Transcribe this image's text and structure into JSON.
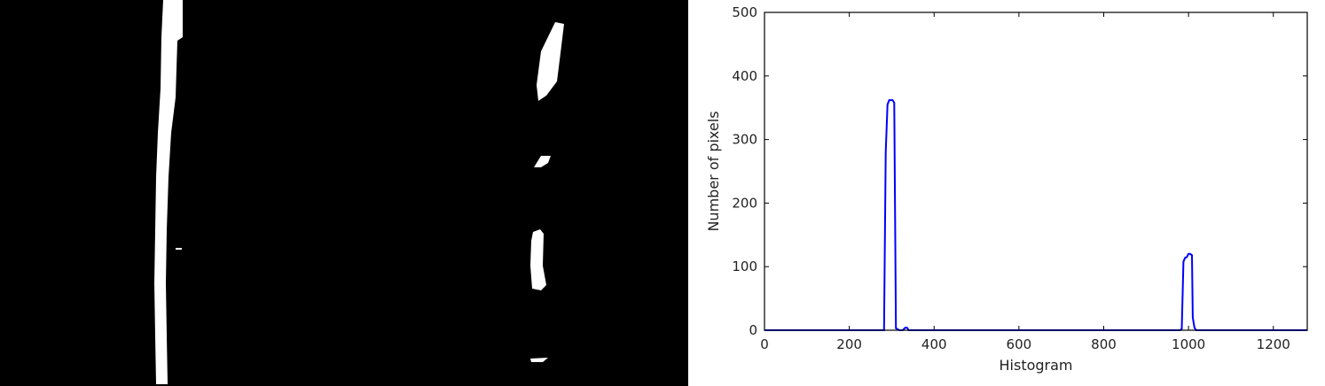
{
  "binary_image": {
    "colors": {
      "background": "#000000",
      "lane": "#ffffff"
    }
  },
  "chart_data": {
    "type": "line",
    "title": "",
    "xlabel": "Histogram",
    "ylabel": "Number of pixels",
    "xlim": [
      0,
      1280
    ],
    "ylim": [
      0,
      500
    ],
    "xticks": [
      0,
      200,
      400,
      600,
      800,
      1000,
      1200
    ],
    "yticks": [
      0,
      100,
      200,
      300,
      400,
      500
    ],
    "grid": false,
    "legend": "none",
    "series": [
      {
        "color": "#0000ff",
        "x": [
          0,
          282,
          286,
          290,
          294,
          298,
          302,
          306,
          310,
          318,
          326,
          332,
          336,
          340,
          600,
          980,
          984,
          988,
          992,
          996,
          1000,
          1004,
          1008,
          1010,
          1014,
          1018,
          1280
        ],
        "y": [
          0,
          0,
          280,
          355,
          362,
          362,
          362,
          358,
          3,
          0,
          0,
          4,
          4,
          0,
          0,
          0,
          2,
          108,
          114,
          115,
          120,
          120,
          118,
          20,
          4,
          0,
          0
        ]
      }
    ]
  }
}
